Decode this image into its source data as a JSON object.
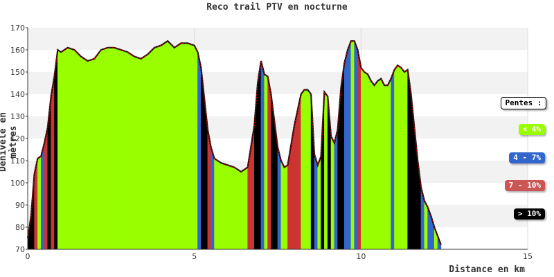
{
  "chart_data": {
    "type": "area",
    "title": "Reco trail PTV en nocturne",
    "xlabel": "Distance en km",
    "ylabel": "Dénivelé en mètres",
    "xlim": [
      0,
      15
    ],
    "ylim": [
      70,
      170
    ],
    "xticks": [
      0,
      5,
      10,
      15
    ],
    "yticks": [
      70,
      80,
      90,
      100,
      110,
      120,
      130,
      140,
      150,
      160,
      170
    ],
    "grid": "horizontal bands",
    "legend_position": "right",
    "x": [
      0,
      0.1,
      0.2,
      0.3,
      0.4,
      0.5,
      0.6,
      0.7,
      0.8,
      0.9,
      1.0,
      1.2,
      1.4,
      1.6,
      1.8,
      2.0,
      2.2,
      2.4,
      2.6,
      2.8,
      3.0,
      3.2,
      3.4,
      3.6,
      3.8,
      4.0,
      4.2,
      4.4,
      4.6,
      4.8,
      5.0,
      5.1,
      5.2,
      5.3,
      5.4,
      5.5,
      5.6,
      5.7,
      5.8,
      6.0,
      6.2,
      6.4,
      6.6,
      6.8,
      6.9,
      7.0,
      7.1,
      7.2,
      7.3,
      7.4,
      7.5,
      7.6,
      7.7,
      7.8,
      7.9,
      8.0,
      8.1,
      8.2,
      8.3,
      8.4,
      8.5,
      8.6,
      8.7,
      8.8,
      8.9,
      9.0,
      9.1,
      9.2,
      9.3,
      9.4,
      9.5,
      9.6,
      9.7,
      9.8,
      9.9,
      10.0,
      10.1,
      10.2,
      10.3,
      10.4,
      10.5,
      10.6,
      10.7,
      10.8,
      10.9,
      11.0,
      11.1,
      11.2,
      11.3,
      11.4,
      11.5,
      11.6,
      11.7,
      11.8,
      11.9,
      12.0,
      12.1,
      12.2,
      12.3,
      12.4
    ],
    "y": [
      75,
      85,
      104,
      111,
      112,
      118,
      125,
      139,
      148,
      160,
      159,
      161,
      160,
      157,
      155,
      156,
      160,
      161,
      161,
      160,
      159,
      157,
      156,
      158,
      161,
      162,
      164,
      161,
      163,
      163,
      162,
      159,
      152,
      138,
      124,
      116,
      111,
      110,
      109,
      108,
      107,
      105,
      107,
      126,
      145,
      155,
      149,
      148,
      140,
      128,
      116,
      110,
      107,
      108,
      117,
      126,
      133,
      140,
      142,
      142,
      140,
      113,
      108,
      112,
      141,
      139,
      121,
      118,
      124,
      143,
      154,
      160,
      164,
      164,
      160,
      152,
      150,
      149,
      146,
      144,
      146,
      147,
      144,
      144,
      147,
      151,
      153,
      152,
      150,
      151,
      140,
      125,
      110,
      98,
      92,
      89,
      85,
      80,
      76,
      72
    ],
    "slope_classes": [
      "< 4%",
      "4 - 7%",
      "7 - 10%",
      "> 10%"
    ],
    "colors": {
      "< 4%": "#99ff00",
      "4 - 7%": "#3366cc",
      "7 - 10%": "#cc3333",
      "> 10%": "#000000",
      "outline": "#cc0000",
      "band_light": "#f2f2f2",
      "band_white": "#ffffff"
    },
    "legend": {
      "title": "Pentes :",
      "items": [
        "< 4%",
        "4 - 7%",
        "7 - 10%",
        "> 10%"
      ]
    }
  }
}
